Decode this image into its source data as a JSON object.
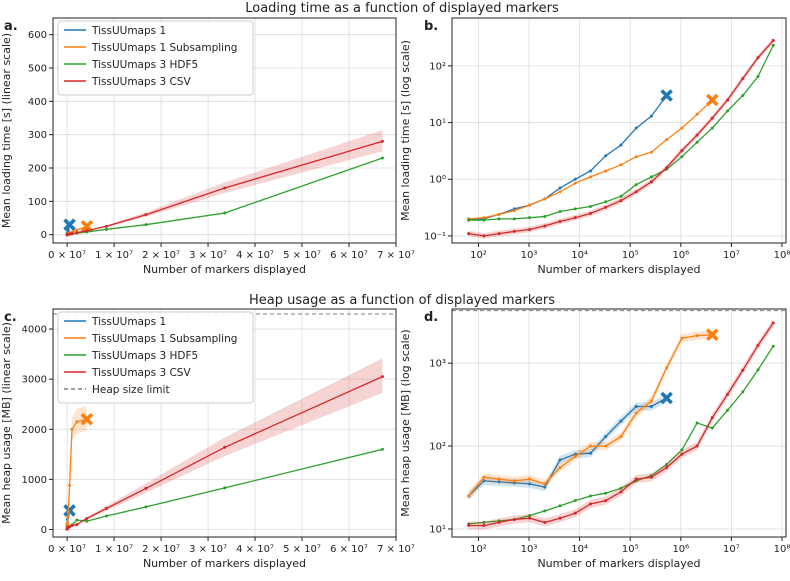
{
  "section_titles": {
    "top": "Loading time as a function of displayed markers",
    "bottom": "Heap usage as a function of displayed markers"
  },
  "colors": {
    "TissUUmaps 1": "#1f77b4",
    "TissUUmaps 1 Subsampling": "#ff7f0e",
    "TissUUmaps 3 HDF5": "#2ca02c",
    "TissUUmaps 3 CSV": "#d62728",
    "Heap size limit": "#7f7f7f"
  },
  "chart_data": [
    {
      "id": "a",
      "panel_label": "a.",
      "type": "line",
      "xscale": "linear",
      "yscale": "linear",
      "xlim": [
        -3000000,
        70000000
      ],
      "ylim": [
        -25,
        650
      ],
      "xticks": [
        0,
        10000000,
        20000000,
        30000000,
        40000000,
        50000000,
        60000000,
        70000000
      ],
      "xtick_labels": [
        "0 × 10⁷",
        "1 × 10⁷",
        "2 × 10⁷",
        "3 × 10⁷",
        "4 × 10⁷",
        "5 × 10⁷",
        "6 × 10⁷",
        "7 × 10⁷"
      ],
      "yticks": [
        0,
        100,
        200,
        300,
        400,
        500,
        600
      ],
      "ytick_labels": [
        "0",
        "100",
        "200",
        "300",
        "400",
        "500",
        "600"
      ],
      "xlabel": "Number of markers displayed",
      "ylabel": "Mean loading time [s] (linear scale)",
      "legend": [
        "TissUUmaps 1",
        "TissUUmaps 1 Subsampling",
        "TissUUmaps 3 HDF5",
        "TissUUmaps 3 CSV"
      ],
      "series": [
        {
          "name": "TissUUmaps 1",
          "x": [
            64,
            128,
            256,
            512,
            1024,
            2048,
            4096,
            8192,
            16384,
            32768,
            65536,
            131072,
            262144,
            524288
          ],
          "y": [
            0.2,
            0.2,
            0.24,
            0.3,
            0.35,
            0.45,
            0.7,
            1.0,
            1.4,
            2.6,
            4,
            8,
            13,
            30
          ],
          "end_marker": true
        },
        {
          "name": "TissUUmaps 1 Subsampling",
          "x": [
            64,
            128,
            256,
            512,
            1024,
            2048,
            4096,
            8192,
            16384,
            32768,
            65536,
            131072,
            262144,
            524288,
            1048576,
            2097152,
            4194304
          ],
          "y": [
            0.2,
            0.21,
            0.24,
            0.28,
            0.35,
            0.45,
            0.6,
            0.85,
            1.1,
            1.4,
            1.8,
            2.5,
            3,
            5,
            8,
            14,
            25
          ],
          "end_marker": true
        },
        {
          "name": "TissUUmaps 3 HDF5",
          "x": [
            64,
            128,
            256,
            512,
            1024,
            2048,
            4096,
            8192,
            16384,
            32768,
            65536,
            131072,
            262144,
            524288,
            1048576,
            2097152,
            4194304,
            8388608,
            16777216,
            33554432,
            67108864
          ],
          "y": [
            0.19,
            0.19,
            0.2,
            0.2,
            0.21,
            0.22,
            0.27,
            0.3,
            0.33,
            0.4,
            0.5,
            0.8,
            1.1,
            1.5,
            2.5,
            4.5,
            8,
            16,
            30,
            65,
            230
          ]
        },
        {
          "name": "TissUUmaps 3 CSV",
          "x": [
            64,
            128,
            256,
            512,
            1024,
            2048,
            4096,
            8192,
            16384,
            32768,
            65536,
            131072,
            262144,
            524288,
            1048576,
            2097152,
            4194304,
            8388608,
            16777216,
            33554432,
            67108864
          ],
          "y": [
            0.11,
            0.1,
            0.11,
            0.12,
            0.13,
            0.15,
            0.18,
            0.21,
            0.25,
            0.32,
            0.42,
            0.6,
            0.9,
            1.6,
            3.2,
            6,
            12,
            25,
            60,
            140,
            280
          ],
          "band": true
        }
      ]
    },
    {
      "id": "b",
      "panel_label": "b.",
      "type": "line",
      "xscale": "log",
      "yscale": "log",
      "xlim": [
        30,
        120000000
      ],
      "ylim": [
        0.075,
        700
      ],
      "xticks": [
        100,
        1000,
        10000,
        100000,
        1000000,
        10000000,
        100000000
      ],
      "xtick_labels": [
        "10²",
        "10³",
        "10⁴",
        "10⁵",
        "10⁶",
        "10⁷",
        "10⁸"
      ],
      "yticks": [
        0.1,
        1,
        10,
        100
      ],
      "ytick_labels": [
        "10⁻¹",
        "10⁰",
        "10¹",
        "10²"
      ],
      "xlabel": "Number of markers displayed",
      "ylabel": "Mean loading time [s] (log scale)",
      "series_ref": "a"
    },
    {
      "id": "c",
      "panel_label": "c.",
      "type": "line",
      "xscale": "linear",
      "yscale": "linear",
      "xlim": [
        -3000000,
        70000000
      ],
      "ylim": [
        -150,
        4400
      ],
      "xticks": [
        0,
        10000000,
        20000000,
        30000000,
        40000000,
        50000000,
        60000000,
        70000000
      ],
      "xtick_labels": [
        "0 × 10⁷",
        "1 × 10⁷",
        "2 × 10⁷",
        "3 × 10⁷",
        "4 × 10⁷",
        "5 × 10⁷",
        "6 × 10⁷",
        "7 × 10⁷"
      ],
      "yticks": [
        0,
        1000,
        2000,
        3000,
        4000
      ],
      "ytick_labels": [
        "0",
        "1000",
        "2000",
        "3000",
        "4000"
      ],
      "xlabel": "Number of markers displayed",
      "ylabel": "Mean heap usage [MB] (linear scale)",
      "heap_limit": 4300,
      "legend": [
        "TissUUmaps 1",
        "TissUUmaps 1 Subsampling",
        "TissUUmaps 3 HDF5",
        "TissUUmaps 3 CSV",
        "Heap size limit"
      ],
      "series": [
        {
          "name": "TissUUmaps 1",
          "x": [
            64,
            128,
            256,
            512,
            1024,
            2048,
            4096,
            8192,
            16384,
            32768,
            65536,
            131072,
            262144,
            524288
          ],
          "y": [
            25,
            38,
            37,
            36,
            35,
            32,
            68,
            80,
            82,
            130,
            200,
            300,
            300,
            380
          ],
          "end_marker": true,
          "band": true
        },
        {
          "name": "TissUUmaps 1 Subsampling",
          "x": [
            64,
            128,
            256,
            512,
            1024,
            2048,
            4096,
            8192,
            16384,
            32768,
            65536,
            131072,
            262144,
            524288,
            1048576,
            2097152,
            4194304
          ],
          "y": [
            25,
            42,
            40,
            38,
            40,
            35,
            55,
            75,
            100,
            100,
            130,
            250,
            350,
            880,
            2000,
            2150,
            2200
          ],
          "end_marker": true,
          "band": true
        },
        {
          "name": "TissUUmaps 3 HDF5",
          "x": [
            64,
            128,
            256,
            512,
            1024,
            2048,
            4096,
            8192,
            16384,
            32768,
            65536,
            131072,
            262144,
            524288,
            1048576,
            2097152,
            4194304,
            8388608,
            16777216,
            33554432,
            67108864
          ],
          "y": [
            11.5,
            12,
            12.5,
            13,
            14.5,
            16.5,
            19,
            22,
            25,
            27,
            31,
            38,
            44,
            60,
            90,
            190,
            165,
            270,
            450,
            830,
            1600
          ]
        },
        {
          "name": "TissUUmaps 3 CSV",
          "x": [
            64,
            128,
            256,
            512,
            1024,
            2048,
            4096,
            8192,
            16384,
            32768,
            65536,
            131072,
            262144,
            524288,
            1048576,
            2097152,
            4194304,
            8388608,
            16777216,
            33554432,
            67108864
          ],
          "y": [
            11,
            11,
            12,
            13,
            13.5,
            12,
            13.5,
            15.5,
            20,
            22,
            28,
            40,
            42,
            55,
            80,
            100,
            220,
            420,
            820,
            1640,
            3050
          ],
          "band": true
        }
      ]
    },
    {
      "id": "d",
      "panel_label": "d.",
      "type": "line",
      "xscale": "log",
      "yscale": "log",
      "xlim": [
        30,
        120000000
      ],
      "ylim": [
        8,
        4500
      ],
      "xticks": [
        100,
        1000,
        10000,
        100000,
        1000000,
        10000000,
        100000000
      ],
      "xtick_labels": [
        "10²",
        "10³",
        "10⁴",
        "10⁵",
        "10⁶",
        "10⁷",
        "10⁸"
      ],
      "yticks": [
        10,
        100,
        1000
      ],
      "ytick_labels": [
        "10¹",
        "10²",
        "10³"
      ],
      "xlabel": "Number of markers displayed",
      "ylabel": "Mean heap usage [MB] (log scale)",
      "heap_limit": 4300,
      "series_ref": "c"
    }
  ]
}
